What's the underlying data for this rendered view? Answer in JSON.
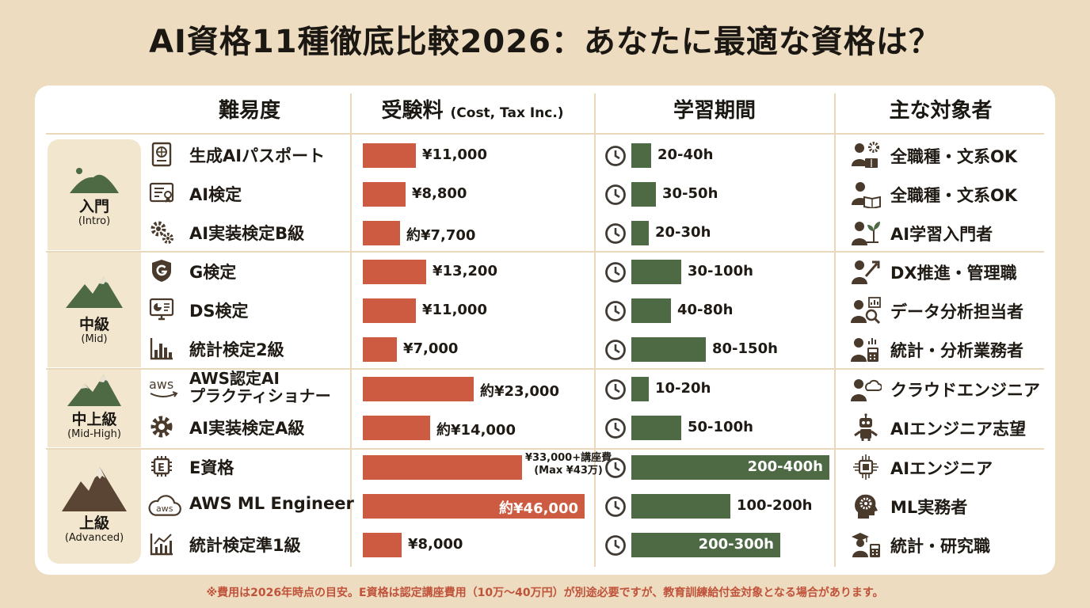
{
  "title": "AI資格11種徹底比較2026：あなたに最適な資格は？",
  "headers": {
    "difficulty": "難易度",
    "cost": "受験料",
    "cost_sub": "(Cost, Tax Inc.)",
    "duration": "学習期間",
    "audience": "主な対象者"
  },
  "levels": [
    {
      "name": "入門",
      "en": "(Intro)"
    },
    {
      "name": "中級",
      "en": "(Mid)"
    },
    {
      "name": "中上級",
      "en": "(Mid-High)"
    },
    {
      "name": "上級",
      "en": "(Advanced)"
    }
  ],
  "colors": {
    "cost_bar": "#cc5b41",
    "time_bar": "#4d6a45",
    "background": "#eddcc0",
    "note": "#c0523a"
  },
  "chart_data": {
    "type": "bar",
    "categories": [
      "生成AIパスポート",
      "AI検定",
      "AI実装検定B級",
      "G検定",
      "DS検定",
      "統計検定2級",
      "AWS認定AI プラクティショナー",
      "AI実装検定A級",
      "E資格",
      "AWS ML Engineer",
      "統計検定準1級"
    ],
    "series": [
      {
        "name": "受験料",
        "values": [
          11000,
          8800,
          7700,
          13200,
          11000,
          7000,
          23000,
          14000,
          33000,
          46000,
          8000
        ]
      },
      {
        "name": "学習期間",
        "values": [
          [
            20,
            40
          ],
          [
            30,
            50
          ],
          [
            20,
            30
          ],
          [
            30,
            100
          ],
          [
            40,
            80
          ],
          [
            80,
            150
          ],
          [
            10,
            20
          ],
          [
            50,
            100
          ],
          [
            200,
            400
          ],
          [
            100,
            200
          ],
          [
            200,
            300
          ]
        ]
      }
    ],
    "cost_labels": [
      "¥11,000",
      "¥8,800",
      "約¥7,700",
      "¥13,200",
      "¥11,000",
      "¥7,000",
      "約¥23,000",
      "約¥14,000",
      "¥33,000+講座費\n(Max ¥43万)",
      "約¥46,000",
      "¥8,000"
    ],
    "time_labels": [
      "20-40h",
      "30-50h",
      "20-30h",
      "30-100h",
      "40-80h",
      "80-150h",
      "10-20h",
      "50-100h",
      "200-400h",
      "100-200h",
      "200-300h"
    ]
  },
  "rows": [
    {
      "name": "生成AIパスポート",
      "level": 0,
      "icon": "passport-icon",
      "aicon": "people-gear-icon",
      "audience": "全職種・文系OK"
    },
    {
      "name": "AI検定",
      "level": 0,
      "icon": "certificate-icon",
      "aicon": "person-book-icon",
      "audience": "全職種・文系OK"
    },
    {
      "name": "AI実装検定B級",
      "level": 0,
      "icon": "gears-icon",
      "aicon": "person-sprout-icon",
      "audience": "AI学習入門者"
    },
    {
      "name": "G検定",
      "level": 1,
      "icon": "shield-g-icon",
      "aicon": "person-arrow-icon",
      "audience": "DX推進・管理職"
    },
    {
      "name": "DS検定",
      "level": 1,
      "icon": "monitor-chart-icon",
      "aicon": "person-magnifier-icon",
      "audience": "データ分析担当者"
    },
    {
      "name": "統計検定2級",
      "level": 1,
      "icon": "bar-chart-icon",
      "aicon": "person-calculator-icon",
      "audience": "統計・分析業務者"
    },
    {
      "name": "AWS認定AI プラクティショナー",
      "level": 2,
      "icon": "aws-logo-icon",
      "aicon": "person-cloud-icon",
      "audience": "クラウドエンジニア"
    },
    {
      "name": "AI実装検定A級",
      "level": 2,
      "icon": "gear-icon",
      "aicon": "robot-icon",
      "audience": "AIエンジニア志望"
    },
    {
      "name": "E資格",
      "level": 3,
      "icon": "chip-e-icon",
      "aicon": "chip-icon",
      "audience": "AIエンジニア"
    },
    {
      "name": "AWS ML Engineer",
      "level": 3,
      "icon": "aws-cloud-icon",
      "aicon": "head-gear-icon",
      "audience": "ML実務者"
    },
    {
      "name": "統計検定準1級",
      "level": 3,
      "icon": "line-chart-icon",
      "aicon": "graduate-calculator-icon",
      "audience": "統計・研究職"
    }
  ],
  "note": "※費用は2026年時点の目安。E資格は認定講座費用（10万〜40万円）が別途必要ですが、教育訓練給付金対象となる場合があります。"
}
